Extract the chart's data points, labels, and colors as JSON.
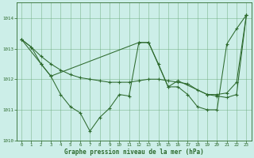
{
  "xlabel": "Graphe pression niveau de la mer (hPa)",
  "background_color": "#cceee8",
  "grid_color": "#6aaa7a",
  "line_color": "#2d6a2d",
  "xlim": [
    -0.5,
    23.5
  ],
  "ylim": [
    1010.0,
    1014.5
  ],
  "yticks": [
    1010,
    1011,
    1012,
    1013,
    1014
  ],
  "xticks": [
    0,
    1,
    2,
    3,
    4,
    5,
    6,
    7,
    8,
    9,
    10,
    11,
    12,
    13,
    14,
    15,
    16,
    17,
    18,
    19,
    20,
    21,
    22,
    23
  ],
  "series1_x": [
    0,
    1,
    2,
    3,
    4,
    5,
    6,
    7,
    8,
    9,
    10,
    11,
    12,
    13,
    14,
    15,
    16,
    17,
    18,
    19,
    20,
    21,
    22,
    23
  ],
  "series1_y": [
    1013.3,
    1013.05,
    1012.5,
    1012.1,
    1011.5,
    1011.1,
    1010.9,
    1010.3,
    1010.75,
    1011.05,
    1011.5,
    1011.45,
    1013.2,
    1013.2,
    1012.5,
    1011.75,
    1011.75,
    1011.5,
    1011.1,
    1011.0,
    1011.0,
    1013.15,
    1013.65,
    1014.1
  ],
  "series2_x": [
    0,
    1,
    2,
    3,
    4,
    5,
    6,
    7,
    8,
    9,
    10,
    11,
    12,
    13,
    14,
    15,
    16,
    17,
    18,
    19,
    20,
    21,
    22,
    23
  ],
  "series2_y": [
    1013.3,
    1013.05,
    1012.75,
    1012.5,
    1012.3,
    1012.15,
    1012.05,
    1012.0,
    1011.95,
    1011.9,
    1011.9,
    1011.9,
    1011.95,
    1012.0,
    1012.0,
    1011.95,
    1011.9,
    1011.85,
    1011.65,
    1011.5,
    1011.5,
    1011.55,
    1011.9,
    1014.1
  ],
  "series3_x": [
    0,
    2,
    3,
    12,
    13,
    15,
    16,
    19,
    20,
    21,
    22,
    23
  ],
  "series3_y": [
    1013.3,
    1012.5,
    1012.1,
    1013.2,
    1013.2,
    1011.75,
    1011.95,
    1011.5,
    1011.45,
    1011.4,
    1011.5,
    1014.1
  ]
}
